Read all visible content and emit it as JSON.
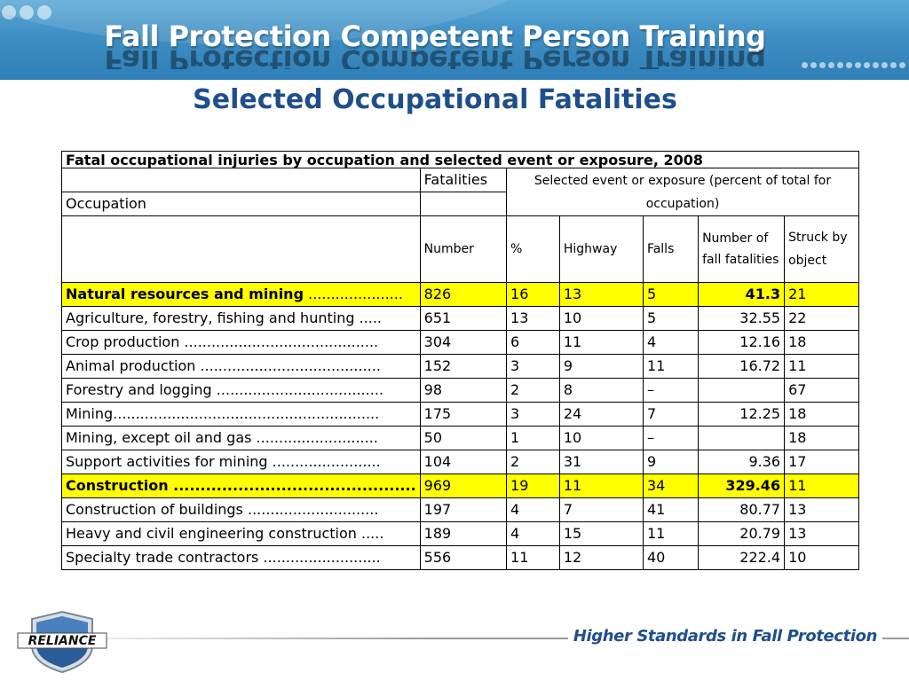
{
  "header": {
    "title": "Fall Protection Competent Person Training"
  },
  "subtitle": "Selected Occupational Fatalities",
  "table": {
    "caption": "Fatal occupational injuries by occupation and selected event or exposure, 2008",
    "fatalities_label": "Fatalities",
    "occupation_label": "Occupation",
    "event_label": "Selected event or exposure (percent of total for occupation)",
    "columns": {
      "number": "Number",
      "percent": "%",
      "highway": "Highway",
      "falls": "Falls",
      "fall_fatalities": "Number of fall fatalities",
      "struck": "Struck by object"
    },
    "rows": [
      {
        "occupation": "Natural resources and mining",
        "leader": " .....................",
        "number": "826",
        "percent": "16",
        "highway": "13",
        "falls": "5",
        "fall_fatalities": "41.3",
        "struck": "21",
        "highlight": true
      },
      {
        "occupation": "Agriculture, forestry, fishing and hunting",
        "leader": " .....",
        "number": "651",
        "percent": "13",
        "highway": "10",
        "falls": "5",
        "fall_fatalities": "32.55",
        "struck": "22",
        "highlight": false
      },
      {
        "occupation": "Crop production",
        "leader": " ...........................................",
        "number": "304",
        "percent": "6",
        "highway": "11",
        "falls": "4",
        "fall_fatalities": "12.16",
        "struck": "18",
        "highlight": false
      },
      {
        "occupation": "Animal production",
        "leader": " ........................................",
        "number": "152",
        "percent": "3",
        "highway": "9",
        "falls": "11",
        "fall_fatalities": "16.72",
        "struck": "11",
        "highlight": false
      },
      {
        "occupation": "Forestry and logging",
        "leader": " .....................................",
        "number": "98",
        "percent": "2",
        "highway": "8",
        "falls": "–",
        "fall_fatalities": "",
        "struck": "67",
        "highlight": false
      },
      {
        "occupation": "Mining",
        "leader": "...........................................................",
        "number": "175",
        "percent": "3",
        "highway": "24",
        "falls": "7",
        "fall_fatalities": "12.25",
        "struck": "18",
        "highlight": false
      },
      {
        "occupation": "Mining, except oil and gas",
        "leader": " ...........................",
        "number": "50",
        "percent": "1",
        "highway": "10",
        "falls": "–",
        "fall_fatalities": "",
        "struck": "18",
        "highlight": false
      },
      {
        "occupation": "Support activities for mining",
        "leader": " ........................",
        "number": "104",
        "percent": "2",
        "highway": "31",
        "falls": "9",
        "fall_fatalities": "9.36",
        "struck": "17",
        "highlight": false
      },
      {
        "occupation": "Construction",
        "leader": " .............................................",
        "number": "969",
        "percent": "19",
        "highway": "11",
        "falls": "34",
        "fall_fatalities": "329.46",
        "struck": "11",
        "highlight": true
      },
      {
        "occupation": "Construction of buildings",
        "leader": " .............................",
        "number": "197",
        "percent": "4",
        "highway": "7",
        "falls": "41",
        "fall_fatalities": "80.77",
        "struck": "13",
        "highlight": false
      },
      {
        "occupation": "Heavy and civil engineering construction",
        "leader": " .....",
        "number": "189",
        "percent": "4",
        "highway": "15",
        "falls": "11",
        "fall_fatalities": "20.79",
        "struck": "13",
        "highlight": false
      },
      {
        "occupation": "Specialty trade contractors",
        "leader": " ..........................",
        "number": "556",
        "percent": "11",
        "highway": "12",
        "falls": "40",
        "fall_fatalities": "222.4",
        "struck": "10",
        "highlight": false
      }
    ]
  },
  "footer": {
    "logo_text": "RELIANCE",
    "tagline": "Higher Standards in Fall Protection"
  },
  "colors": {
    "banner": "#3f8fc4",
    "subtitle": "#1f4e8c",
    "highlight": "#ffff00",
    "tagline": "#1f4e8c"
  }
}
